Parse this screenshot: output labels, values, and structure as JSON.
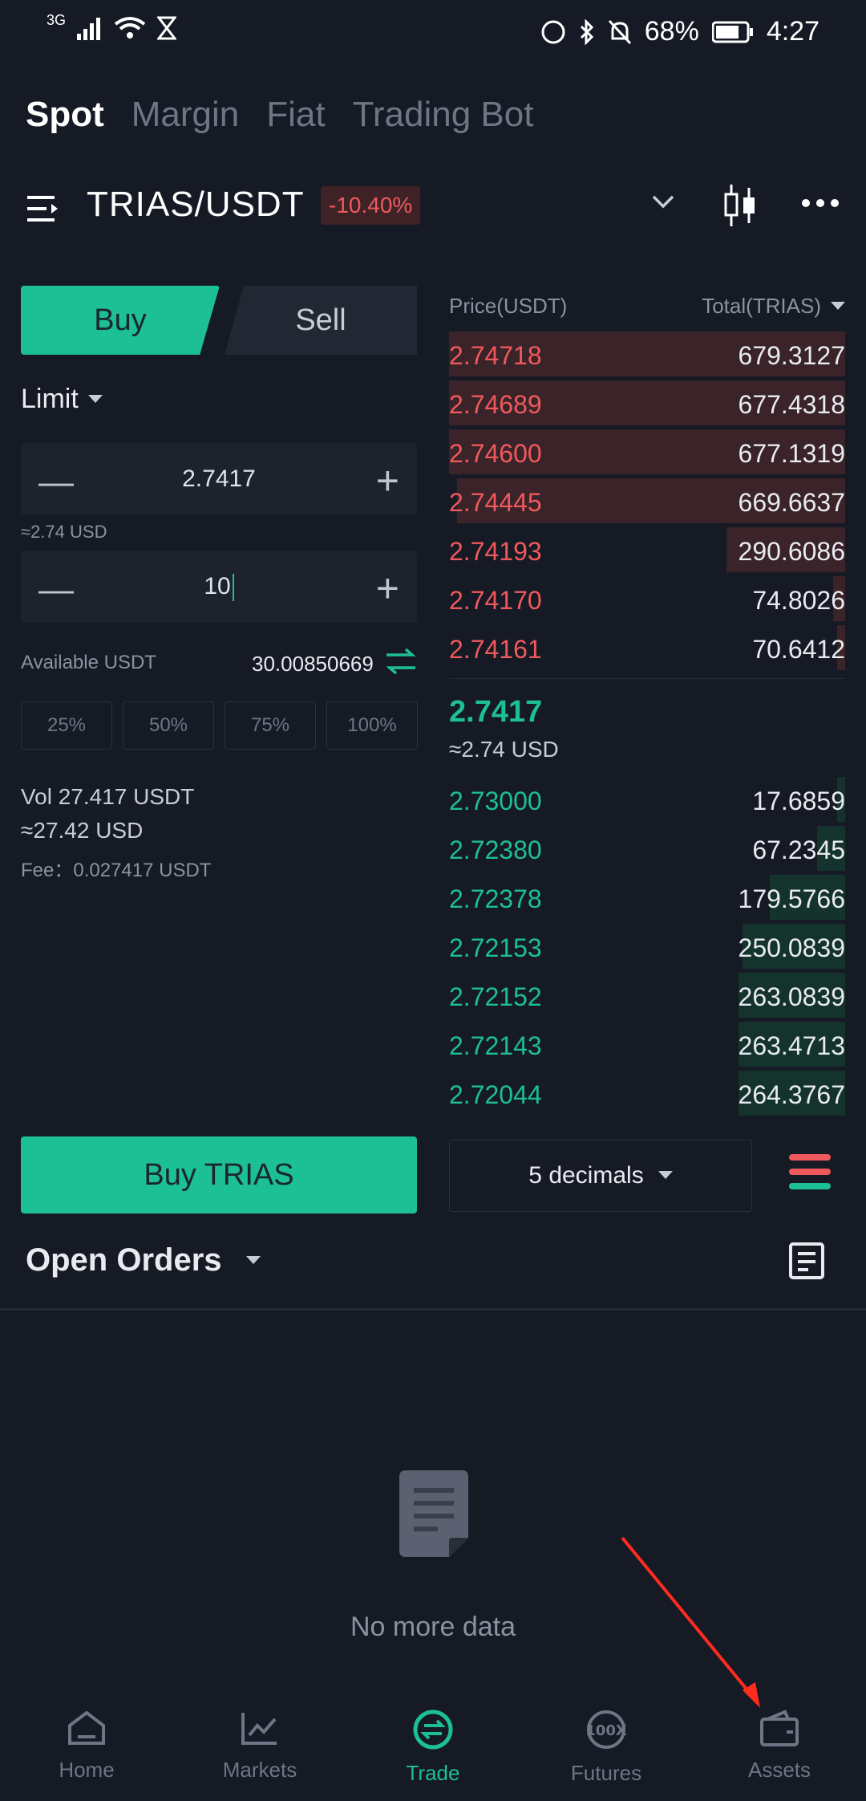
{
  "status": {
    "network": "3G",
    "battery": "68%",
    "time": "4:27"
  },
  "tabs": [
    "Spot",
    "Margin",
    "Fiat",
    "Trading Bot"
  ],
  "pair": {
    "name": "TRIAS/USDT",
    "change": "-10.40%"
  },
  "trade": {
    "buy": "Buy",
    "sell": "Sell",
    "order_type": "Limit",
    "price": "2.7417",
    "price_approx": "≈2.74 USD",
    "amount": "10",
    "available_label": "Available USDT",
    "available_value": "30.00850669",
    "percents": [
      "25%",
      "50%",
      "75%",
      "100%"
    ],
    "vol": "Vol 27.417 USDT",
    "vol_usd": "≈27.42 USD",
    "fee": "Fee：0.027417 USDT",
    "buy_button": "Buy TRIAS"
  },
  "orderbook": {
    "price_header": "Price(USDT)",
    "total_header": "Total(TRIAS)",
    "asks": [
      {
        "price": "2.74718",
        "total": "679.3127",
        "depth": 1.0
      },
      {
        "price": "2.74689",
        "total": "677.4318",
        "depth": 1.0
      },
      {
        "price": "2.74600",
        "total": "677.1319",
        "depth": 1.0
      },
      {
        "price": "2.74445",
        "total": "669.6637",
        "depth": 0.98
      },
      {
        "price": "2.74193",
        "total": "290.6086",
        "depth": 0.3
      },
      {
        "price": "2.74170",
        "total": "74.8026",
        "depth": 0.03
      },
      {
        "price": "2.74161",
        "total": "70.6412",
        "depth": 0.02
      }
    ],
    "last_price": "2.7417",
    "last_usd": "≈2.74 USD",
    "bids": [
      {
        "price": "2.73000",
        "total": "17.6859",
        "depth": 0.02
      },
      {
        "price": "2.72380",
        "total": "67.2345",
        "depth": 0.07
      },
      {
        "price": "2.72378",
        "total": "179.5766",
        "depth": 0.19
      },
      {
        "price": "2.72153",
        "total": "250.0839",
        "depth": 0.26
      },
      {
        "price": "2.72152",
        "total": "263.0839",
        "depth": 0.27
      },
      {
        "price": "2.72143",
        "total": "263.4713",
        "depth": 0.27
      },
      {
        "price": "2.72044",
        "total": "264.3767",
        "depth": 0.27
      }
    ],
    "decimals": "5 decimals"
  },
  "open_orders": {
    "title": "Open Orders",
    "empty": "No more data"
  },
  "nav": [
    {
      "label": "Home",
      "icon": "home-icon"
    },
    {
      "label": "Markets",
      "icon": "markets-icon"
    },
    {
      "label": "Trade",
      "icon": "trade-icon"
    },
    {
      "label": "Futures",
      "icon": "futures-icon"
    },
    {
      "label": "Assets",
      "icon": "assets-icon"
    }
  ],
  "colors": {
    "green": "#1dbf95",
    "red": "#f0595c",
    "bg": "#151a25"
  }
}
